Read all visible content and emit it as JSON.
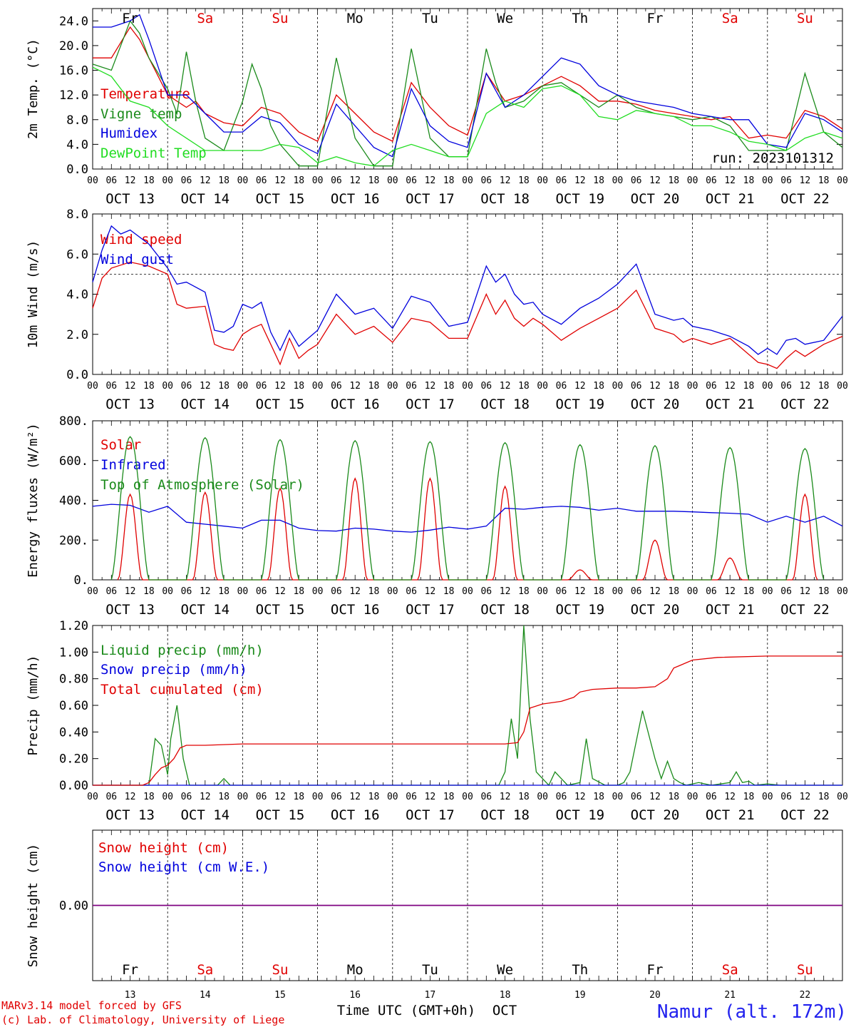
{
  "days": [
    "Fr",
    "Sa",
    "Su",
    "Mo",
    "Tu",
    "We",
    "Th",
    "Fr",
    "Sa",
    "Su"
  ],
  "day_colors": [
    "#000000",
    "#e00000",
    "#e00000",
    "#000000",
    "#000000",
    "#000000",
    "#000000",
    "#000000",
    "#e00000",
    "#e00000"
  ],
  "dates": [
    "OCT 13",
    "OCT 14",
    "OCT 15",
    "OCT 16",
    "OCT 17",
    "OCT 18",
    "OCT 19",
    "OCT 20",
    "OCT 21",
    "OCT 22"
  ],
  "hour_ticks": [
    "00",
    "06",
    "12",
    "18"
  ],
  "day_numbers": [
    "13",
    "14",
    "15",
    "16",
    "17",
    "18",
    "19",
    "20",
    "21",
    "22"
  ],
  "footer": {
    "credit1": "MARv3.14 model forced by GFS",
    "credit2": "(c) Lab. of Climatology, University of Liege",
    "xlabel": "Time UTC (GMT+0h)",
    "month": "OCT",
    "station": "Namur (alt. 172m)"
  },
  "run_label": "run: 2023101312",
  "colors": {
    "red": "#e00000",
    "green": "#1a8a1a",
    "blue": "#0000dd",
    "light_green": "#22dd22",
    "purple": "#800080"
  },
  "chart_data": [
    {
      "type": "line",
      "ylabel": "2m Temp. (°C)",
      "ylim": [
        0,
        26
      ],
      "yticks": [
        "0.0",
        "4.0",
        "8.0",
        "12.0",
        "16.0",
        "20.0",
        "24.0"
      ],
      "ytick_values": [
        0,
        4,
        8,
        12,
        16,
        20,
        24
      ],
      "x_unit": "hours since Oct 13 00 UTC",
      "series": [
        {
          "name": "Temperature",
          "color": "#e00000",
          "x": [
            0,
            6,
            12,
            15,
            18,
            24,
            30,
            33,
            36,
            42,
            48,
            54,
            60,
            66,
            72,
            78,
            84,
            90,
            96,
            102,
            108,
            114,
            120,
            126,
            132,
            138,
            144,
            150,
            156,
            162,
            168,
            174,
            180,
            186,
            192,
            198,
            204,
            210,
            216,
            222,
            228,
            234,
            240
          ],
          "y": [
            18,
            18,
            23,
            21,
            18,
            12,
            10,
            11,
            9,
            7.5,
            7,
            10,
            9,
            6,
            4.5,
            12,
            9,
            6,
            4.5,
            14,
            10,
            7,
            5.5,
            15.5,
            11,
            12,
            13.5,
            15,
            13.5,
            11,
            11,
            10.5,
            9.5,
            9,
            8.5,
            8,
            8.5,
            5,
            5.5,
            5,
            9.5,
            8.5,
            6.5
          ]
        },
        {
          "name": "Vigne temp",
          "color": "#1a8a1a",
          "x": [
            0,
            6,
            12,
            15,
            18,
            24,
            27,
            30,
            33,
            36,
            42,
            48,
            51,
            54,
            57,
            60,
            66,
            72,
            78,
            84,
            90,
            96,
            102,
            108,
            114,
            120,
            126,
            129,
            132,
            138,
            144,
            150,
            156,
            162,
            168,
            174,
            180,
            186,
            192,
            198,
            204,
            210,
            216,
            222,
            228,
            234,
            240
          ],
          "y": [
            17,
            16,
            24,
            22,
            18,
            13,
            9,
            19,
            11,
            5,
            3,
            11,
            17,
            13,
            7,
            4,
            0.5,
            0.5,
            18,
            5,
            0.5,
            0.5,
            19.5,
            5,
            2,
            2,
            19.5,
            14,
            10,
            11,
            13.5,
            14,
            12,
            10,
            12,
            10,
            9,
            8.5,
            8,
            8.5,
            7,
            3,
            3,
            3,
            15.5,
            6,
            3.5
          ]
        },
        {
          "name": "Humidex",
          "color": "#0000dd",
          "x": [
            0,
            6,
            12,
            15,
            18,
            24,
            30,
            36,
            42,
            48,
            54,
            60,
            66,
            72,
            78,
            84,
            90,
            96,
            102,
            108,
            114,
            120,
            126,
            132,
            138,
            144,
            150,
            156,
            162,
            168,
            174,
            180,
            186,
            192,
            198,
            204,
            210,
            216,
            222,
            228,
            234,
            240
          ],
          "y": [
            23,
            23,
            24,
            25,
            21,
            12,
            12,
            9,
            6,
            6,
            8.5,
            7.5,
            4,
            2.5,
            10.5,
            7,
            3.5,
            2,
            13,
            7,
            4.5,
            3.5,
            15.5,
            10,
            12,
            15,
            18,
            17,
            13.5,
            12,
            11,
            10.5,
            10,
            9,
            8.5,
            8,
            8,
            4,
            3.5,
            9,
            8,
            6
          ]
        },
        {
          "name": "DewPoint Temp",
          "color": "#22dd22",
          "x": [
            0,
            6,
            12,
            18,
            24,
            30,
            36,
            42,
            48,
            54,
            60,
            66,
            72,
            78,
            84,
            90,
            96,
            102,
            108,
            114,
            120,
            126,
            132,
            138,
            144,
            150,
            156,
            162,
            168,
            174,
            180,
            186,
            192,
            198,
            204,
            210,
            216,
            222,
            228,
            234,
            240
          ],
          "y": [
            16.5,
            15,
            11,
            10,
            7,
            5,
            3,
            3,
            3,
            3,
            4,
            3.5,
            1,
            2,
            1,
            0.5,
            3,
            4,
            3,
            2,
            2,
            9,
            11,
            10,
            13,
            13.5,
            12,
            8.5,
            8,
            9.5,
            9,
            8.5,
            7,
            7,
            6,
            4.5,
            4,
            3,
            5,
            6,
            5
          ]
        }
      ]
    },
    {
      "type": "line",
      "ylabel": "10m Wind (m/s)",
      "ylim": [
        0,
        8
      ],
      "yticks": [
        "0.0",
        "2.0",
        "4.0",
        "6.0",
        "8.0"
      ],
      "ytick_values": [
        0,
        2,
        4,
        6,
        8
      ],
      "reference_line": 5,
      "series": [
        {
          "name": "Wind speed",
          "color": "#e00000",
          "x": [
            0,
            3,
            6,
            12,
            18,
            24,
            27,
            30,
            36,
            39,
            42,
            45,
            48,
            51,
            54,
            57,
            60,
            63,
            66,
            69,
            72,
            78,
            84,
            90,
            96,
            102,
            108,
            114,
            120,
            126,
            129,
            132,
            135,
            138,
            141,
            144,
            150,
            156,
            162,
            168,
            174,
            180,
            186,
            189,
            192,
            198,
            204,
            210,
            213,
            216,
            219,
            222,
            225,
            228,
            234,
            240
          ],
          "y": [
            3.3,
            4.8,
            5.3,
            5.6,
            5.4,
            5,
            3.5,
            3.3,
            3.4,
            1.5,
            1.3,
            1.2,
            2,
            2.3,
            2.5,
            1.5,
            0.5,
            1.8,
            0.8,
            1.2,
            1.5,
            3,
            2,
            2.4,
            1.6,
            2.8,
            2.6,
            1.8,
            1.8,
            4,
            3,
            3.7,
            2.8,
            2.4,
            2.8,
            2.5,
            1.7,
            2.3,
            2.8,
            3.3,
            4.2,
            2.3,
            2,
            1.6,
            1.8,
            1.5,
            1.8,
            1,
            0.6,
            0.5,
            0.3,
            0.8,
            1.2,
            0.9,
            1.5,
            1.9
          ]
        },
        {
          "name": "Wind gust",
          "color": "#0000dd",
          "x": [
            0,
            3,
            6,
            9,
            12,
            18,
            24,
            27,
            30,
            36,
            39,
            42,
            45,
            48,
            51,
            54,
            57,
            60,
            63,
            66,
            69,
            72,
            78,
            84,
            90,
            96,
            102,
            108,
            114,
            120,
            126,
            129,
            132,
            135,
            138,
            141,
            144,
            150,
            156,
            162,
            168,
            174,
            180,
            186,
            189,
            192,
            198,
            204,
            210,
            213,
            216,
            219,
            222,
            225,
            228,
            234,
            240
          ],
          "y": [
            4.6,
            6.2,
            7.4,
            7,
            7.2,
            6.5,
            5.3,
            4.5,
            4.6,
            4.1,
            2.2,
            2.1,
            2.4,
            3.5,
            3.3,
            3.6,
            2.1,
            1.2,
            2.2,
            1.4,
            1.8,
            2.2,
            4,
            3,
            3.3,
            2.3,
            3.9,
            3.6,
            2.4,
            2.6,
            5.4,
            4.6,
            5,
            4,
            3.5,
            3.6,
            3,
            2.5,
            3.3,
            3.8,
            4.5,
            5.5,
            3,
            2.7,
            2.8,
            2.4,
            2.2,
            1.9,
            1.4,
            1,
            1.3,
            1,
            1.7,
            1.8,
            1.5,
            1.7,
            2.9
          ]
        }
      ]
    },
    {
      "type": "line",
      "ylabel": "Energy fluxes (W/m²)",
      "ylim": [
        0,
        800
      ],
      "yticks": [
        "0.",
        "200.",
        "400.",
        "600.",
        "800."
      ],
      "ytick_values": [
        0,
        200,
        400,
        600,
        800
      ],
      "series": [
        {
          "name": "Solar",
          "color": "#e00000",
          "daily_peaks": [
            430,
            440,
            460,
            510,
            510,
            470,
            50,
            200,
            110,
            430
          ]
        },
        {
          "name": "Infrared",
          "color": "#0000dd",
          "x": [
            0,
            6,
            12,
            18,
            24,
            30,
            36,
            42,
            48,
            54,
            60,
            66,
            72,
            78,
            84,
            90,
            96,
            102,
            108,
            114,
            120,
            126,
            132,
            138,
            144,
            150,
            156,
            162,
            168,
            174,
            180,
            186,
            192,
            198,
            204,
            210,
            216,
            222,
            228,
            234,
            240
          ],
          "y": [
            370,
            380,
            375,
            340,
            370,
            290,
            280,
            270,
            260,
            300,
            300,
            260,
            248,
            245,
            260,
            255,
            245,
            240,
            250,
            265,
            255,
            270,
            360,
            355,
            365,
            370,
            365,
            350,
            360,
            345,
            345,
            345,
            342,
            338,
            335,
            330,
            290,
            320,
            290,
            320,
            270
          ]
        },
        {
          "name": "Top of Atmosphere (Solar)",
          "color": "#1a8a1a",
          "daily_peaks": [
            720,
            715,
            705,
            700,
            695,
            690,
            680,
            675,
            665,
            660
          ]
        }
      ]
    },
    {
      "type": "line",
      "ylabel": "Precip (mm/h)",
      "ylim": [
        0,
        1.2
      ],
      "yticks": [
        "0.00",
        "0.20",
        "0.40",
        "0.60",
        "0.80",
        "1.00",
        "1.20"
      ],
      "ytick_values": [
        0,
        0.2,
        0.4,
        0.6,
        0.8,
        1.0,
        1.2
      ],
      "series": [
        {
          "name": "Liquid precip (mm/h)",
          "color": "#1a8a1a",
          "x": [
            0,
            18,
            20,
            22,
            24,
            25,
            27,
            29,
            31,
            33,
            40,
            42,
            44,
            46,
            130,
            132,
            134,
            136,
            138,
            140,
            142,
            144,
            146,
            148,
            150,
            152,
            156,
            158,
            160,
            164,
            166,
            168,
            170,
            172,
            176,
            180,
            182,
            184,
            186,
            188,
            190,
            194,
            198,
            204,
            206,
            208,
            210,
            212,
            216,
            220,
            240
          ],
          "y": [
            0,
            0,
            0.35,
            0.3,
            0.08,
            0.35,
            0.6,
            0.2,
            0,
            0,
            0,
            0.05,
            0,
            0,
            0,
            0.1,
            0.5,
            0.2,
            1.2,
            0.5,
            0.1,
            0.05,
            0,
            0.1,
            0.05,
            0,
            0.02,
            0.35,
            0.05,
            0,
            0,
            0,
            0.02,
            0.1,
            0.56,
            0.2,
            0.05,
            0.18,
            0.05,
            0.02,
            0,
            0.02,
            0,
            0.02,
            0.1,
            0.02,
            0.03,
            0,
            0.01,
            0,
            0
          ]
        },
        {
          "name": "Snow precip (mm/h)",
          "color": "#0000dd",
          "x": [
            0,
            240
          ],
          "y": [
            0,
            0
          ]
        },
        {
          "name": "Total cumulated (cm)",
          "color": "#e00000",
          "x": [
            0,
            16,
            18,
            20,
            22,
            24,
            26,
            28,
            30,
            36,
            48,
            72,
            96,
            120,
            132,
            136,
            138,
            140,
            144,
            150,
            154,
            156,
            160,
            168,
            174,
            180,
            184,
            186,
            188,
            192,
            200,
            216,
            240
          ],
          "y": [
            0,
            0,
            0.02,
            0.08,
            0.13,
            0.15,
            0.2,
            0.28,
            0.3,
            0.3,
            0.31,
            0.31,
            0.31,
            0.31,
            0.31,
            0.32,
            0.4,
            0.58,
            0.61,
            0.63,
            0.66,
            0.7,
            0.72,
            0.73,
            0.73,
            0.74,
            0.8,
            0.88,
            0.9,
            0.94,
            0.96,
            0.97,
            0.97
          ]
        }
      ]
    },
    {
      "type": "line",
      "ylabel": "Snow height (cm)",
      "ylim": [
        -1,
        1
      ],
      "yticks": [
        "0.00"
      ],
      "ytick_values": [
        0
      ],
      "series": [
        {
          "name": "Snow height (cm)",
          "color": "#e00000",
          "x": [
            0,
            240
          ],
          "y": [
            0,
            0
          ]
        },
        {
          "name": "Snow height (cm W.E.)",
          "color": "#0000dd",
          "x": [
            0,
            240
          ],
          "y": [
            0,
            0
          ]
        }
      ]
    }
  ]
}
